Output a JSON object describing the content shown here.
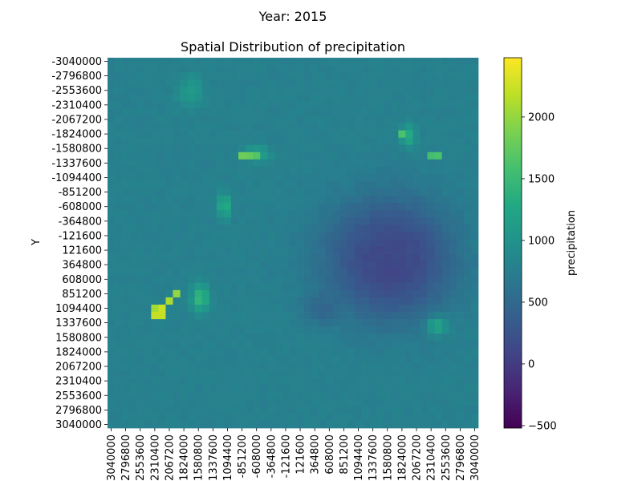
{
  "suptitle": "Year: 2015",
  "chart_data": {
    "type": "heatmap",
    "title": "Spatial Distribution of precipitation",
    "xlabel": "",
    "ylabel": "Y",
    "colorbar_label": "precipitation",
    "colormap": "viridis",
    "vmin": -520,
    "vmax": 2480,
    "colorbar_ticks": [
      -500,
      0,
      500,
      1000,
      1500,
      2000
    ],
    "x_tick_labels": [
      "-3040000",
      "-2796800",
      "-2553600",
      "-2310400",
      "-2067200",
      "-1824000",
      "-1580800",
      "-1337600",
      "-1094400",
      "-851200",
      "-608000",
      "-364800",
      "-121600",
      "121600",
      "364800",
      "608000",
      "851200",
      "1094400",
      "1337600",
      "1580800",
      "1824000",
      "2067200",
      "2310400",
      "2553600",
      "2796800",
      "3040000"
    ],
    "y_tick_labels": [
      "-3040000",
      "-2796800",
      "-2553600",
      "-2310400",
      "-2067200",
      "-1824000",
      "-1580800",
      "-1337600",
      "-1094400",
      "-851200",
      "-608000",
      "-364800",
      "-121600",
      "121600",
      "364800",
      "608000",
      "851200",
      "1094400",
      "1337600",
      "1580800",
      "1824000",
      "2067200",
      "2310400",
      "2553600",
      "2796800",
      "3040000"
    ],
    "grid_resolution": 51,
    "field": {
      "background": 780,
      "features": [
        {
          "kind": "low",
          "cx": 0.5,
          "cy": 0.08,
          "rx": 0.42,
          "ry": 0.38,
          "value": 180
        },
        {
          "kind": "low",
          "cx": 0.55,
          "cy": 0.1,
          "rx": 0.3,
          "ry": 0.32,
          "value": 130
        },
        {
          "kind": "low",
          "cx": 0.15,
          "cy": 0.35,
          "rx": 0.12,
          "ry": 0.1,
          "value": 450
        },
        {
          "kind": "high",
          "cx": -0.55,
          "cy": -0.82,
          "rx": 0.09,
          "ry": 0.1,
          "value": 1100
        },
        {
          "kind": "high",
          "cx": -0.2,
          "cy": -0.48,
          "rx": 0.09,
          "ry": 0.05,
          "value": 1250
        },
        {
          "kind": "high",
          "cx": 0.62,
          "cy": -0.58,
          "rx": 0.05,
          "ry": 0.07,
          "value": 1350
        },
        {
          "kind": "high",
          "cx": -0.5,
          "cy": 0.3,
          "rx": 0.06,
          "ry": 0.09,
          "value": 1500
        },
        {
          "kind": "high",
          "cx": -0.37,
          "cy": -0.2,
          "rx": 0.04,
          "ry": 0.08,
          "value": 1450
        },
        {
          "kind": "high",
          "cx": 0.78,
          "cy": 0.45,
          "rx": 0.07,
          "ry": 0.06,
          "value": 1300
        }
      ],
      "hotspots": [
        {
          "cx": -0.75,
          "cy": 0.39,
          "value": 2300
        },
        {
          "cx": -0.72,
          "cy": 0.37,
          "value": 2200
        },
        {
          "cx": -0.74,
          "cy": 0.35,
          "value": 2050
        },
        {
          "cx": -0.67,
          "cy": 0.31,
          "value": 2100
        },
        {
          "cx": -0.63,
          "cy": 0.27,
          "value": 2000
        },
        {
          "cx": -0.26,
          "cy": -0.47,
          "value": 1800
        },
        {
          "cx": -0.2,
          "cy": -0.47,
          "value": 1700
        },
        {
          "cx": 0.58,
          "cy": -0.59,
          "value": 1600
        },
        {
          "cx": 0.76,
          "cy": -0.47,
          "value": 1600
        }
      ]
    }
  }
}
